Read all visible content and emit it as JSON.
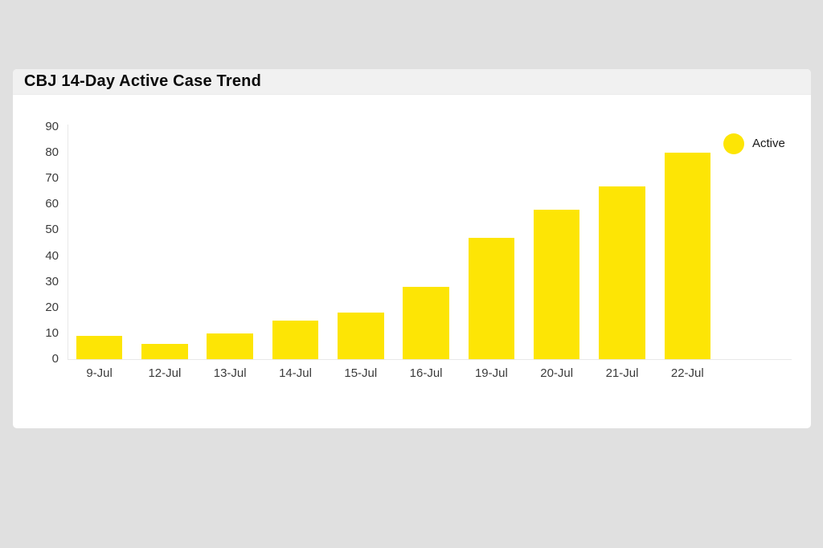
{
  "page": {
    "background": "#e0e0e0"
  },
  "card": {
    "title": "CBJ 14-Day Active Case Trend",
    "title_bar_bg": "#f1f1f1",
    "body_bg": "#ffffff"
  },
  "chart_data": {
    "type": "bar",
    "title": "CBJ 14-Day Active Case Trend",
    "categories": [
      "9-Jul",
      "12-Jul",
      "13-Jul",
      "14-Jul",
      "15-Jul",
      "16-Jul",
      "19-Jul",
      "20-Jul",
      "21-Jul",
      "22-Jul"
    ],
    "series": [
      {
        "name": "Active",
        "values": [
          9,
          6,
          10,
          15,
          18,
          28,
          47,
          58,
          67,
          80
        ]
      }
    ],
    "xlabel": "",
    "ylabel": "",
    "ylim": [
      0,
      90
    ],
    "ytick_step": 10,
    "grid": false,
    "legend_position": "right",
    "legend": [
      {
        "label": "Active",
        "color": "#fde505",
        "marker": "circle"
      }
    ],
    "bar_color": "#fde505",
    "axis_color": "#e8e8e8",
    "label_color": "#3b3b3b"
  }
}
